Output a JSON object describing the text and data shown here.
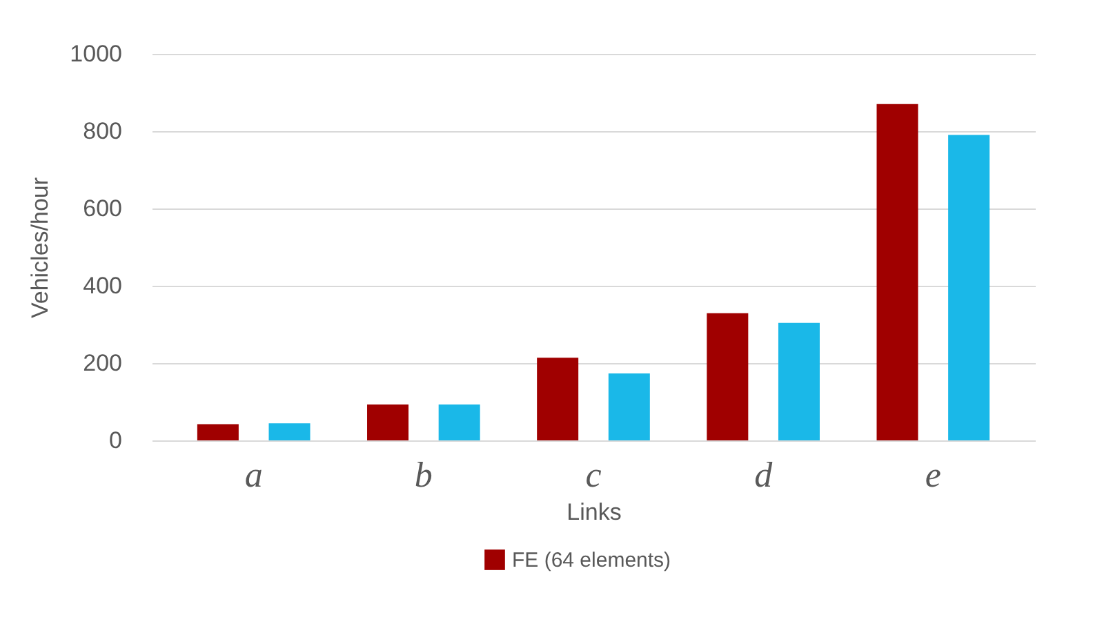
{
  "chart_data": {
    "type": "bar",
    "xlabel": "Links",
    "ylabel": "Vehicles/hour",
    "categories": [
      "a",
      "b",
      "c",
      "d",
      "e"
    ],
    "series": [
      {
        "name": "FE (64 elements)",
        "color": "#a00000",
        "values": [
          42,
          93,
          214,
          329,
          870
        ]
      },
      {
        "color": "#1ab8e8",
        "values": [
          44,
          93,
          173,
          304,
          790
        ]
      }
    ],
    "ylim": [
      0,
      1000
    ],
    "yticks": [
      0,
      200,
      400,
      600,
      800,
      1000
    ],
    "grid": "y",
    "legend": "bottom"
  }
}
